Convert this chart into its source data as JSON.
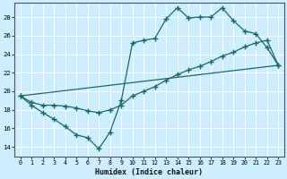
{
  "title": "",
  "xlabel": "Humidex (Indice chaleur)",
  "bg_color": "#cceeff",
  "line_color": "#1a6b5f",
  "grid_color": "#ffffff",
  "xlim": [
    -0.5,
    23.5
  ],
  "ylim": [
    13.0,
    29.5
  ],
  "xticks": [
    0,
    1,
    2,
    3,
    4,
    5,
    6,
    7,
    8,
    9,
    10,
    11,
    12,
    13,
    14,
    15,
    16,
    17,
    18,
    19,
    20,
    21,
    22,
    23
  ],
  "yticks": [
    14,
    16,
    18,
    20,
    22,
    24,
    26,
    28
  ],
  "line1_x": [
    0,
    1,
    2,
    3,
    4,
    5,
    6,
    7,
    8,
    9,
    10,
    11,
    12,
    13,
    14,
    15,
    16,
    17,
    18,
    19,
    20,
    21,
    22,
    23
  ],
  "line1_y": [
    19.5,
    18.5,
    17.7,
    17.0,
    16.2,
    15.3,
    15.0,
    13.8,
    15.6,
    19.0,
    25.2,
    25.5,
    25.7,
    27.8,
    29.0,
    27.9,
    28.0,
    28.0,
    29.0,
    27.6,
    26.5,
    26.2,
    24.7,
    22.8
  ],
  "line2_x": [
    0,
    1,
    2,
    3,
    4,
    5,
    6,
    7,
    8,
    9,
    10,
    11,
    12,
    13,
    14,
    15,
    16,
    17,
    18,
    19,
    20,
    21,
    22,
    23
  ],
  "line2_y": [
    19.5,
    18.8,
    18.5,
    18.5,
    18.4,
    18.2,
    17.9,
    17.7,
    18.0,
    18.5,
    19.5,
    20.0,
    20.5,
    21.2,
    21.8,
    22.3,
    22.7,
    23.2,
    23.8,
    24.2,
    24.8,
    25.2,
    25.5,
    22.8
  ],
  "line3_x": [
    0,
    23
  ],
  "line3_y": [
    19.5,
    22.8
  ]
}
